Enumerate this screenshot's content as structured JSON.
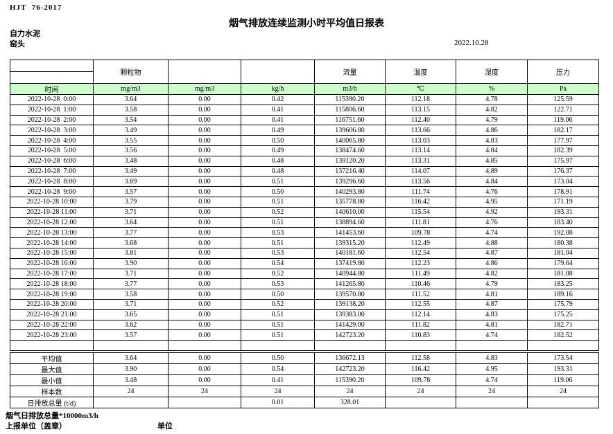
{
  "page": {
    "standard": "HJT  76-2017",
    "title": "烟气排放连续监测小时平均值日报表",
    "company": "自力水泥",
    "station": "窑头",
    "date": "2022.10.28"
  },
  "colors": {
    "unit_row_highlight": "#ccffcc",
    "border": "#000000"
  },
  "table": {
    "time_label": "时间",
    "header_groups": {
      "pm": "颗粒物",
      "flow": "流量",
      "temperature": "温度",
      "humidity": "湿度",
      "pressure": "压力"
    },
    "units": [
      "mg/m3",
      "mg/m3",
      "kg/h",
      "m3/h",
      "℃",
      "%",
      "Pa"
    ],
    "rows": [
      {
        "time": "2022-10-28  0:00",
        "values": [
          "3.64",
          "0.00",
          "0.42",
          "115390.20",
          "112.18",
          "4.78",
          "125.59"
        ]
      },
      {
        "time": "2022-10-28  1:00",
        "values": [
          "3.58",
          "0.00",
          "0.41",
          "115806.60",
          "113.15",
          "4.82",
          "122.71"
        ]
      },
      {
        "time": "2022-10-28  2:00",
        "values": [
          "3.54",
          "0.00",
          "0.41",
          "116751.60",
          "112.40",
          "4.79",
          "119.06"
        ]
      },
      {
        "time": "2022-10-28  3:00",
        "values": [
          "3.49",
          "0.00",
          "0.49",
          "139606.80",
          "113.66",
          "4.86",
          "182.17"
        ]
      },
      {
        "time": "2022-10-28  4:00",
        "values": [
          "3.55",
          "0.00",
          "0.50",
          "140065.80",
          "113.03",
          "4.83",
          "177.97"
        ]
      },
      {
        "time": "2022-10-28  5:00",
        "values": [
          "3.56",
          "0.00",
          "0.49",
          "138474.60",
          "113.14",
          "4.84",
          "182.39"
        ]
      },
      {
        "time": "2022-10-28  6:00",
        "values": [
          "3.48",
          "0.00",
          "0.48",
          "139120.20",
          "113.31",
          "4.85",
          "175.97"
        ]
      },
      {
        "time": "2022-10-28  7:00",
        "values": [
          "3.49",
          "0.00",
          "0.48",
          "137216.40",
          "114.07",
          "4.89",
          "176.37"
        ]
      },
      {
        "time": "2022-10-28  8:00",
        "values": [
          "3.69",
          "0.00",
          "0.51",
          "139296.60",
          "113.56",
          "4.84",
          "173.04"
        ]
      },
      {
        "time": "2022-10-28  9:00",
        "values": [
          "3.57",
          "0.00",
          "0.50",
          "140293.80",
          "111.74",
          "4.76",
          "178.91"
        ]
      },
      {
        "time": "2022-10-28 10:00",
        "values": [
          "3.79",
          "0.00",
          "0.51",
          "135778.80",
          "116.42",
          "4.95",
          "171.19"
        ]
      },
      {
        "time": "2022-10-28 11:00",
        "values": [
          "3.71",
          "0.00",
          "0.52",
          "140610.00",
          "115.54",
          "4.92",
          "193.31"
        ]
      },
      {
        "time": "2022-10-28 12:00",
        "values": [
          "3.64",
          "0.00",
          "0.51",
          "138894.60",
          "111.81",
          "4.76",
          "183.40"
        ]
      },
      {
        "time": "2022-10-28 13:00",
        "values": [
          "3.77",
          "0.00",
          "0.53",
          "141453.60",
          "109.78",
          "4.74",
          "192.08"
        ]
      },
      {
        "time": "2022-10-28 14:00",
        "values": [
          "3.68",
          "0.00",
          "0.51",
          "139315.20",
          "112.49",
          "4.88",
          "180.38"
        ]
      },
      {
        "time": "2022-10-28 15:00",
        "values": [
          "3.81",
          "0.00",
          "0.53",
          "140181.60",
          "112.54",
          "4.87",
          "181.04"
        ]
      },
      {
        "time": "2022-10-28 16:00",
        "values": [
          "3.90",
          "0.00",
          "0.54",
          "137419.80",
          "112.23",
          "4.86",
          "179.64"
        ]
      },
      {
        "time": "2022-10-28 17:00",
        "values": [
          "3.71",
          "0.00",
          "0.52",
          "140944.80",
          "111.49",
          "4.82",
          "181.08"
        ]
      },
      {
        "time": "2022-10-28 18:00",
        "values": [
          "3.77",
          "0.00",
          "0.53",
          "141265.80",
          "110.46",
          "4.79",
          "183.25"
        ]
      },
      {
        "time": "2022-10-28 19:00",
        "values": [
          "3.58",
          "0.00",
          "0.50",
          "139570.80",
          "111.52",
          "4.81",
          "189.16"
        ]
      },
      {
        "time": "2022-10-28 20:00",
        "values": [
          "3.71",
          "0.00",
          "0.52",
          "139138.20",
          "112.55",
          "4.87",
          "175.79"
        ]
      },
      {
        "time": "2022-10-28 21:00",
        "values": [
          "3.65",
          "0.00",
          "0.51",
          "139383.00",
          "112.14",
          "4.83",
          "175.25"
        ]
      },
      {
        "time": "2022-10-28 22:00",
        "values": [
          "3.62",
          "0.00",
          "0.51",
          "141429.00",
          "111.82",
          "4.81",
          "182.71"
        ]
      },
      {
        "time": "2022-10-28 23:00",
        "values": [
          "3.57",
          "0.00",
          "0.51",
          "142723.20",
          "110.83",
          "4.74",
          "182.52"
        ]
      }
    ],
    "summary": [
      {
        "label": "平均值",
        "values": [
          "3.64",
          "0.00",
          "0.50",
          "136672.13",
          "112.58",
          "4.83",
          "173.54"
        ]
      },
      {
        "label": "最大值",
        "values": [
          "3.90",
          "0.00",
          "0.54",
          "142723.20",
          "116.42",
          "4.95",
          "193.31"
        ]
      },
      {
        "label": "最小值",
        "values": [
          "3.48",
          "0.00",
          "0.41",
          "115390.20",
          "109.78",
          "4.74",
          "119.06"
        ]
      },
      {
        "label": "样本数",
        "values": [
          "24",
          "24",
          "24",
          "24",
          "24",
          "24",
          "24"
        ]
      },
      {
        "label": "日排放总量 (t/d)",
        "values": [
          "",
          "",
          "0.01",
          "328.01",
          "",
          "",
          ""
        ]
      }
    ]
  },
  "footer": {
    "note": "烟气日排放总量*10000m3/h",
    "report_unit": "上报单位（盖章）",
    "unit_label": "单位"
  }
}
